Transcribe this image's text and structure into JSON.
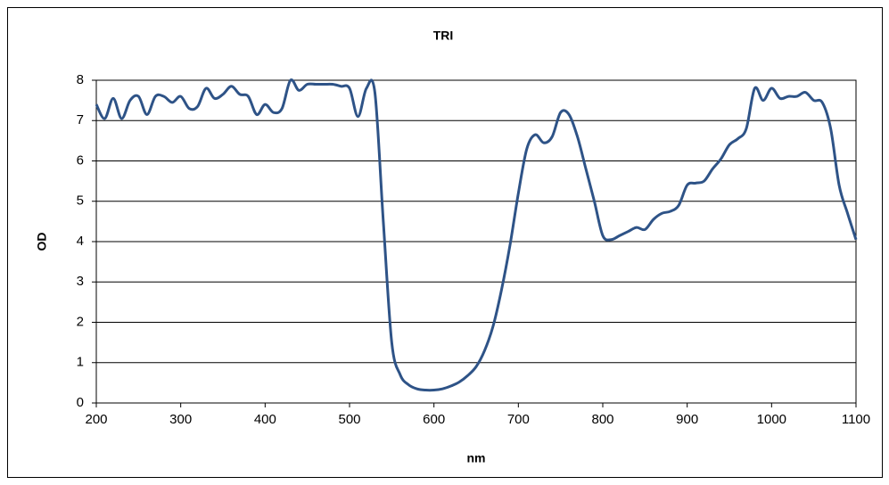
{
  "chart_data": {
    "type": "line",
    "title": "TRI",
    "xlabel": "nm",
    "ylabel": "OD",
    "x": [
      200,
      210,
      220,
      230,
      240,
      250,
      260,
      270,
      280,
      290,
      300,
      310,
      320,
      330,
      340,
      350,
      360,
      370,
      380,
      390,
      400,
      410,
      420,
      430,
      440,
      450,
      460,
      470,
      480,
      490,
      500,
      510,
      520,
      530,
      540,
      550,
      560,
      570,
      580,
      590,
      600,
      610,
      620,
      630,
      640,
      650,
      660,
      670,
      680,
      690,
      700,
      710,
      720,
      730,
      740,
      750,
      760,
      770,
      780,
      790,
      800,
      810,
      820,
      830,
      840,
      850,
      860,
      870,
      880,
      890,
      900,
      910,
      920,
      930,
      940,
      950,
      960,
      970,
      980,
      990,
      1000,
      1010,
      1020,
      1030,
      1040,
      1050,
      1060,
      1070,
      1080,
      1090,
      1100
    ],
    "series": [
      {
        "color": "#2e5387",
        "values": [
          7.4,
          7.05,
          7.55,
          7.05,
          7.5,
          7.6,
          7.15,
          7.6,
          7.6,
          7.45,
          7.6,
          7.3,
          7.35,
          7.8,
          7.55,
          7.65,
          7.85,
          7.65,
          7.6,
          7.15,
          7.4,
          7.2,
          7.3,
          8.0,
          7.75,
          7.9,
          7.9,
          7.9,
          7.9,
          7.85,
          7.8,
          7.1,
          7.8,
          7.7,
          4.5,
          1.5,
          0.7,
          0.45,
          0.35,
          0.32,
          0.32,
          0.35,
          0.42,
          0.52,
          0.68,
          0.9,
          1.3,
          1.9,
          2.8,
          3.9,
          5.2,
          6.3,
          6.65,
          6.45,
          6.6,
          7.2,
          7.15,
          6.6,
          5.8,
          5.0,
          4.15,
          4.05,
          4.15,
          4.25,
          4.35,
          4.3,
          4.55,
          4.7,
          4.75,
          4.9,
          5.4,
          5.45,
          5.5,
          5.8,
          6.05,
          6.4,
          6.55,
          6.8,
          7.8,
          7.5,
          7.8,
          7.55,
          7.6,
          7.6,
          7.7,
          7.5,
          7.45,
          6.8,
          5.4,
          4.7,
          4.05
        ]
      }
    ],
    "xlim": [
      200,
      1100
    ],
    "xticks": [
      200,
      300,
      400,
      500,
      600,
      700,
      800,
      900,
      1000,
      1100
    ],
    "ylim": [
      0,
      8
    ],
    "yticks": [
      0,
      1,
      2,
      3,
      4,
      5,
      6,
      7,
      8
    ],
    "grid": true
  }
}
